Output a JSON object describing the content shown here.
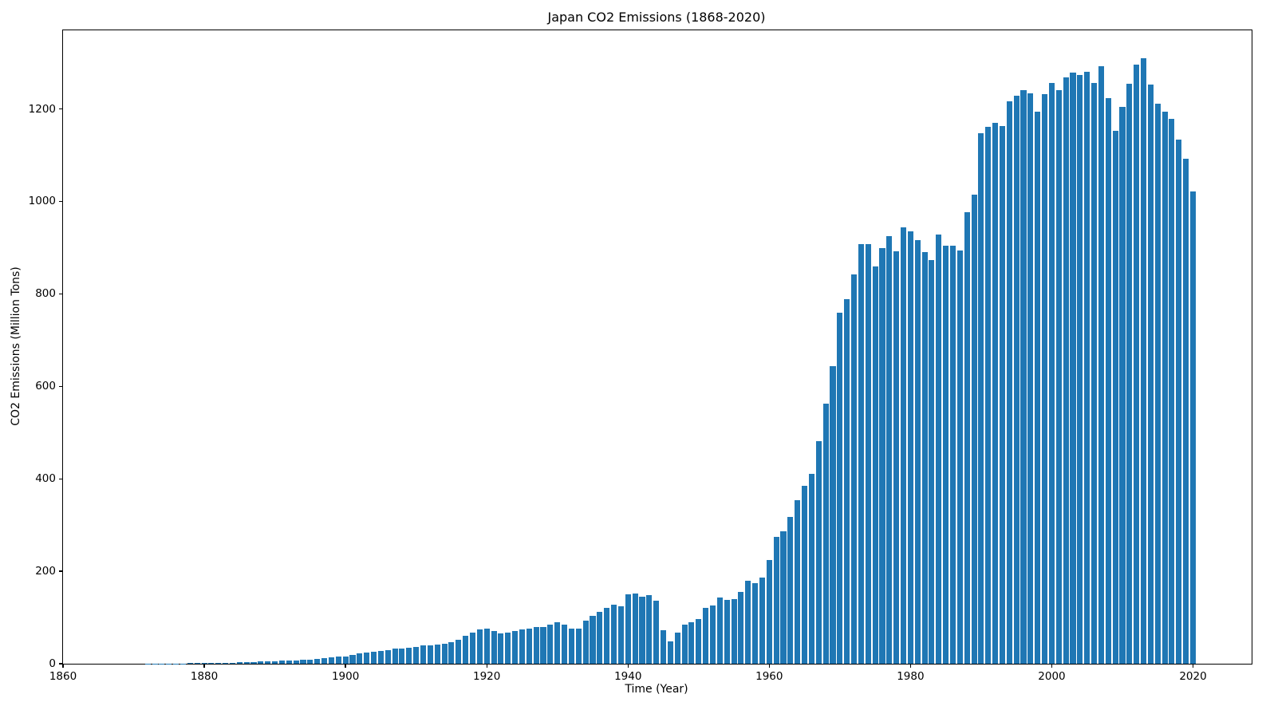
{
  "title": "Japan CO2 Emissions (1868-2020)",
  "chart_data": {
    "type": "bar",
    "title": "Japan CO2 Emissions (1868-2020)",
    "xlabel": "Time (Year)",
    "ylabel": "CO2 Emissions (Million Tons)",
    "start_year": 1868,
    "end_year": 2020,
    "x_ticks": [
      1860,
      1880,
      1900,
      1920,
      1940,
      1960,
      1980,
      2000,
      2020
    ],
    "y_ticks": [
      0,
      200,
      400,
      600,
      800,
      1000,
      1200
    ],
    "xlim": [
      1860,
      2028.3
    ],
    "ylim": [
      0,
      1370
    ],
    "grid": false,
    "legend": "none",
    "bar_color": "#1f77b4",
    "bar_width_fraction": 0.8,
    "values": [
      0.03,
      0.05,
      0.08,
      0.12,
      0.18,
      0.25,
      0.35,
      0.5,
      0.65,
      0.8,
      1.0,
      1.2,
      1.4,
      1.7,
      2.0,
      2.3,
      2.6,
      3.0,
      3.5,
      4.2,
      5.0,
      5.5,
      6.0,
      6.5,
      7.0,
      7.6,
      8.4,
      9.4,
      10.6,
      12.0,
      13.5,
      15.0,
      16.3,
      18.4,
      21.8,
      24.0,
      25.3,
      27.6,
      29.3,
      32.2,
      33.3,
      34.5,
      36.2,
      39.1,
      40.3,
      42.0,
      43.7,
      46.0,
      52.0,
      60.0,
      68.0,
      75.0,
      75.5,
      71.0,
      65.0,
      67.2,
      70.6,
      73.5,
      75.8,
      79.3,
      79.8,
      85.0,
      89.6,
      84.0,
      76.4,
      75.2,
      93.0,
      103.0,
      112.0,
      120.0,
      128.0,
      124.0,
      151.0,
      152.5,
      145.0,
      149.0,
      136.0,
      73.0,
      48.5,
      67.4,
      84.7,
      90.4,
      97.3,
      121.0,
      126.0,
      142.5,
      138.0,
      139.0,
      156.0,
      180.0,
      174.0,
      186.0,
      225.0,
      275.0,
      287.0,
      317.0,
      353.0,
      385.0,
      410.0,
      482.0,
      562.0,
      644.0,
      759.0,
      789.0,
      842.0,
      907.0,
      907.0,
      860.0,
      899.0,
      925.0,
      892.0,
      944.0,
      936.0,
      917.0,
      891.0,
      873.0,
      928.0,
      905.0,
      905.0,
      894.0,
      977.0,
      1015.0,
      1147.0,
      1162.0,
      1170.0,
      1163.0,
      1217.0,
      1228.0,
      1240.0,
      1233.0,
      1194.0,
      1232.0,
      1256.0,
      1240.0,
      1269.0,
      1278.0,
      1273.0,
      1280.0,
      1256.0,
      1293.0,
      1223.0,
      1153.0,
      1205.0,
      1254.0,
      1296.0,
      1310.0,
      1253.0,
      1212.0,
      1194.0,
      1178.0,
      1134.0,
      1093.0,
      1022.0
    ]
  }
}
